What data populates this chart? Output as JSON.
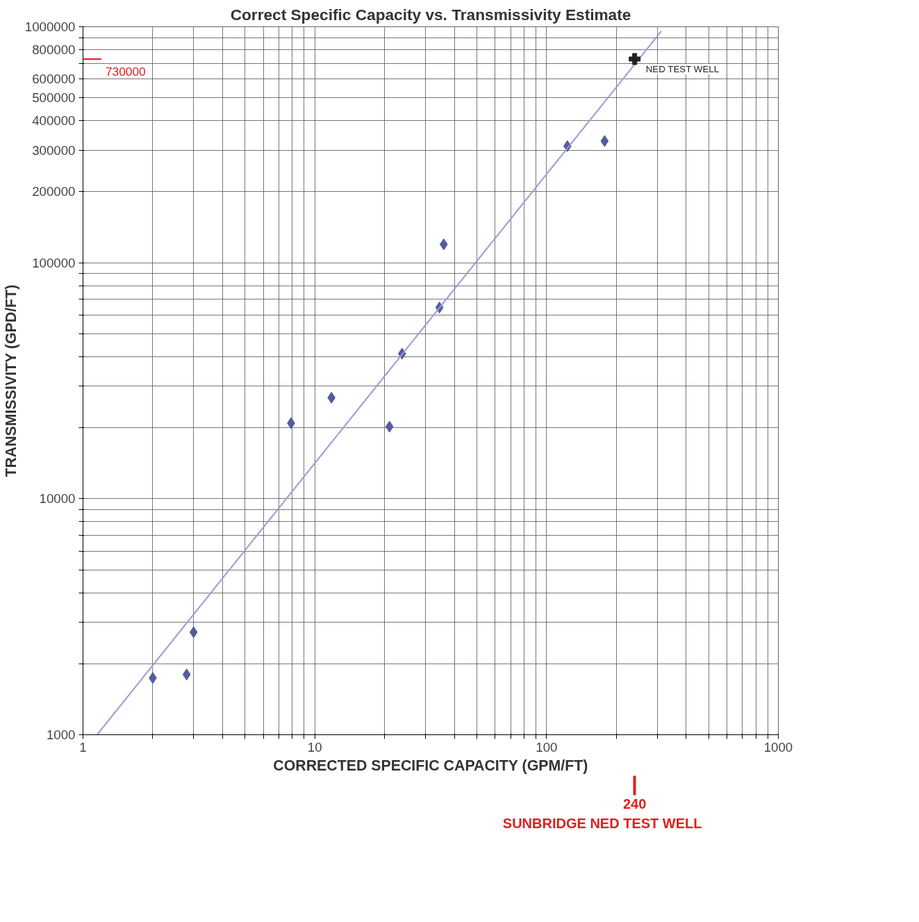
{
  "chart_data": {
    "type": "scatter",
    "title": "Correct Specific Capacity vs. Transmissivity Estimate",
    "xlabel": "CORRECTED SPECIFIC CAPACITY (GPM/FT)",
    "ylabel": "TRANSMISSIVITY (GPD/FT)",
    "log": "xy",
    "grid": true,
    "marker": "diamond",
    "xlim": [
      1,
      1000
    ],
    "ylim": [
      1000,
      1000000
    ],
    "xticks": [
      1,
      {
        "value": 2,
        "label": null
      },
      {
        "value": 3,
        "label": null
      },
      {
        "value": 4,
        "label": null
      },
      {
        "value": 5,
        "label": null
      },
      {
        "value": 6,
        "label": null
      },
      {
        "value": 7,
        "label": null
      },
      {
        "value": 8,
        "label": null
      },
      {
        "value": 9,
        "label": null
      },
      10,
      {
        "value": 20,
        "label": null
      },
      {
        "value": 30,
        "label": null
      },
      {
        "value": 40,
        "label": null
      },
      {
        "value": 50,
        "label": null
      },
      {
        "value": 60,
        "label": null
      },
      {
        "value": 70,
        "label": null
      },
      {
        "value": 80,
        "label": null
      },
      {
        "value": 90,
        "label": null
      },
      100,
      {
        "value": 200,
        "label": null
      },
      {
        "value": 300,
        "label": null
      },
      {
        "value": 400,
        "label": null
      },
      {
        "value": 500,
        "label": null
      },
      {
        "value": 600,
        "label": null
      },
      {
        "value": 700,
        "label": null
      },
      {
        "value": 800,
        "label": null
      },
      {
        "value": 900,
        "label": null
      },
      1000
    ],
    "yticks": [
      1000,
      {
        "value": 2000,
        "label": null
      },
      {
        "value": 3000,
        "label": null
      },
      {
        "value": 4000,
        "label": null
      },
      {
        "value": 5000,
        "label": null
      },
      {
        "value": 6000,
        "label": null
      },
      {
        "value": 7000,
        "label": null
      },
      {
        "value": 8000,
        "label": null
      },
      {
        "value": 9000,
        "label": null
      },
      10000,
      {
        "value": 20000,
        "label": null
      },
      {
        "value": 30000,
        "label": null
      },
      {
        "value": 40000,
        "label": null
      },
      {
        "value": 50000,
        "label": null
      },
      {
        "value": 60000,
        "label": null
      },
      {
        "value": 70000,
        "label": null
      },
      {
        "value": 80000,
        "label": null
      },
      {
        "value": 90000,
        "label": null
      },
      100000,
      200000,
      300000,
      400000,
      500000,
      600000,
      {
        "value": 700000,
        "label": null
      },
      800000,
      {
        "value": 900000,
        "label": null
      },
      1000000
    ],
    "series": [
      {
        "color": "#545a9c",
        "x": [
          2.0,
          2.8,
          3.0,
          7.9,
          11.8,
          21,
          23.8,
          34.5,
          36,
          123,
          178
        ],
        "values": [
          1740,
          1800,
          2720,
          20900,
          26800,
          20200,
          41200,
          64600,
          119700,
          312000,
          328000
        ]
      },
      {
        "type": "line",
        "color": "#9a9ad8",
        "marker": "none",
        "x": [
          1.15,
          313
        ],
        "values": [
          1000,
          960000
        ]
      },
      {
        "type": "scatter",
        "name": "NED TEST WELL",
        "color": "#222222",
        "marker": "cross",
        "x": [
          240
        ],
        "values": [
          730000
        ]
      }
    ],
    "ref_lines": [
      {
        "axis": "y",
        "value": 730000,
        "label": "730000",
        "color": "#e0201c"
      },
      {
        "axis": "x",
        "value": 240,
        "label": "240",
        "color": "#e0201c"
      }
    ],
    "annotations": [
      "SUNBRIDGE NED TEST WELL"
    ]
  }
}
